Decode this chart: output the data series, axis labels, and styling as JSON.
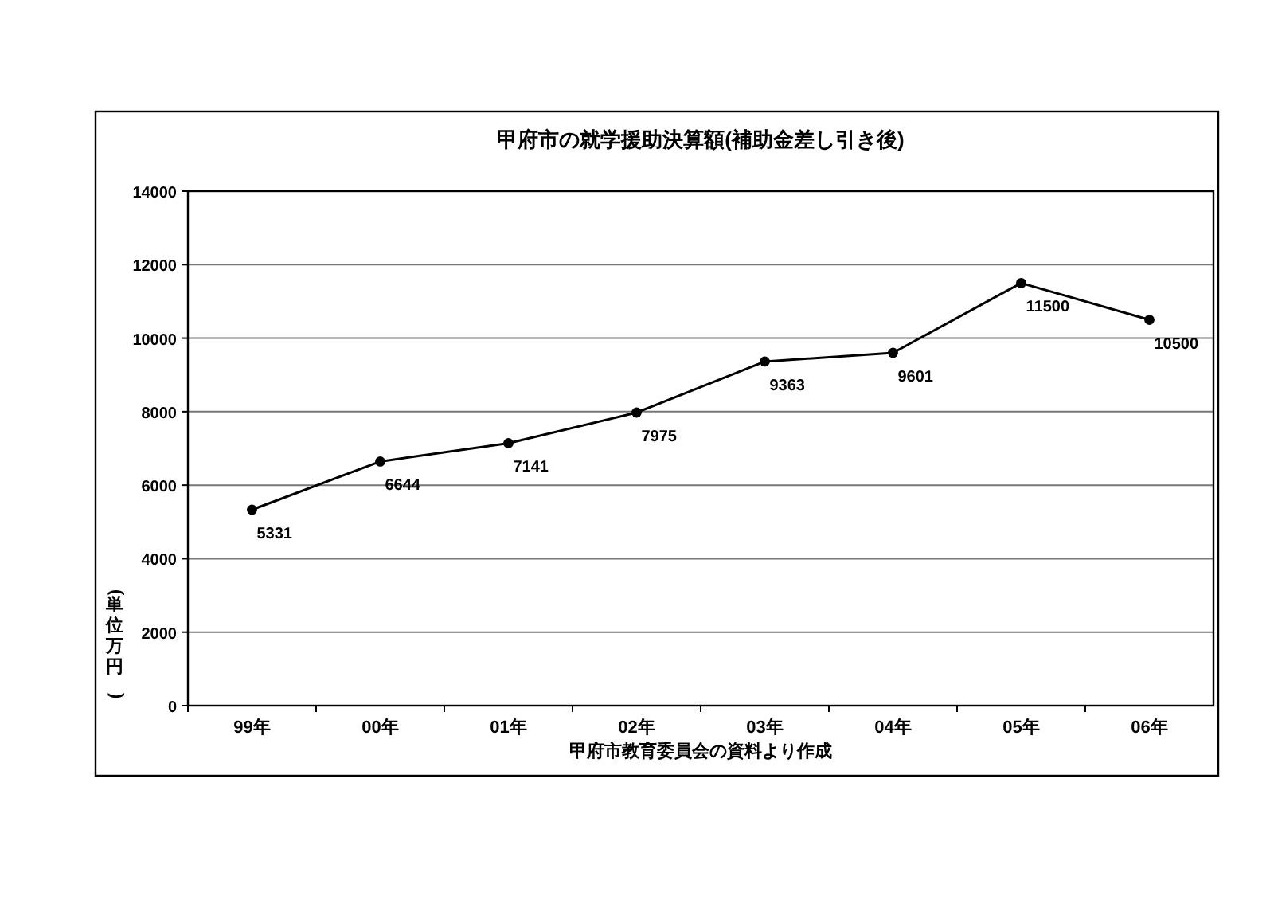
{
  "chart_data": {
    "type": "line",
    "title": "甲府市の就学援助決算額(補助金差し引き後)",
    "ylabel": "(単位万円)",
    "annotations": [
      "甲府市教育委員会の資料より作成"
    ],
    "categories": [
      "99年",
      "00年",
      "01年",
      "02年",
      "03年",
      "04年",
      "05年",
      "06年"
    ],
    "series": [
      {
        "color": "#000000",
        "values": [
          5331,
          6644,
          7141,
          7975,
          9363,
          9601,
          11500,
          10500
        ]
      }
    ],
    "ylim": [
      0,
      14000
    ],
    "yticks": [
      0,
      2000,
      4000,
      6000,
      8000,
      10000,
      12000,
      14000
    ],
    "grid": "y",
    "marker": "circle",
    "line_style": "solid",
    "data_labels": true
  }
}
